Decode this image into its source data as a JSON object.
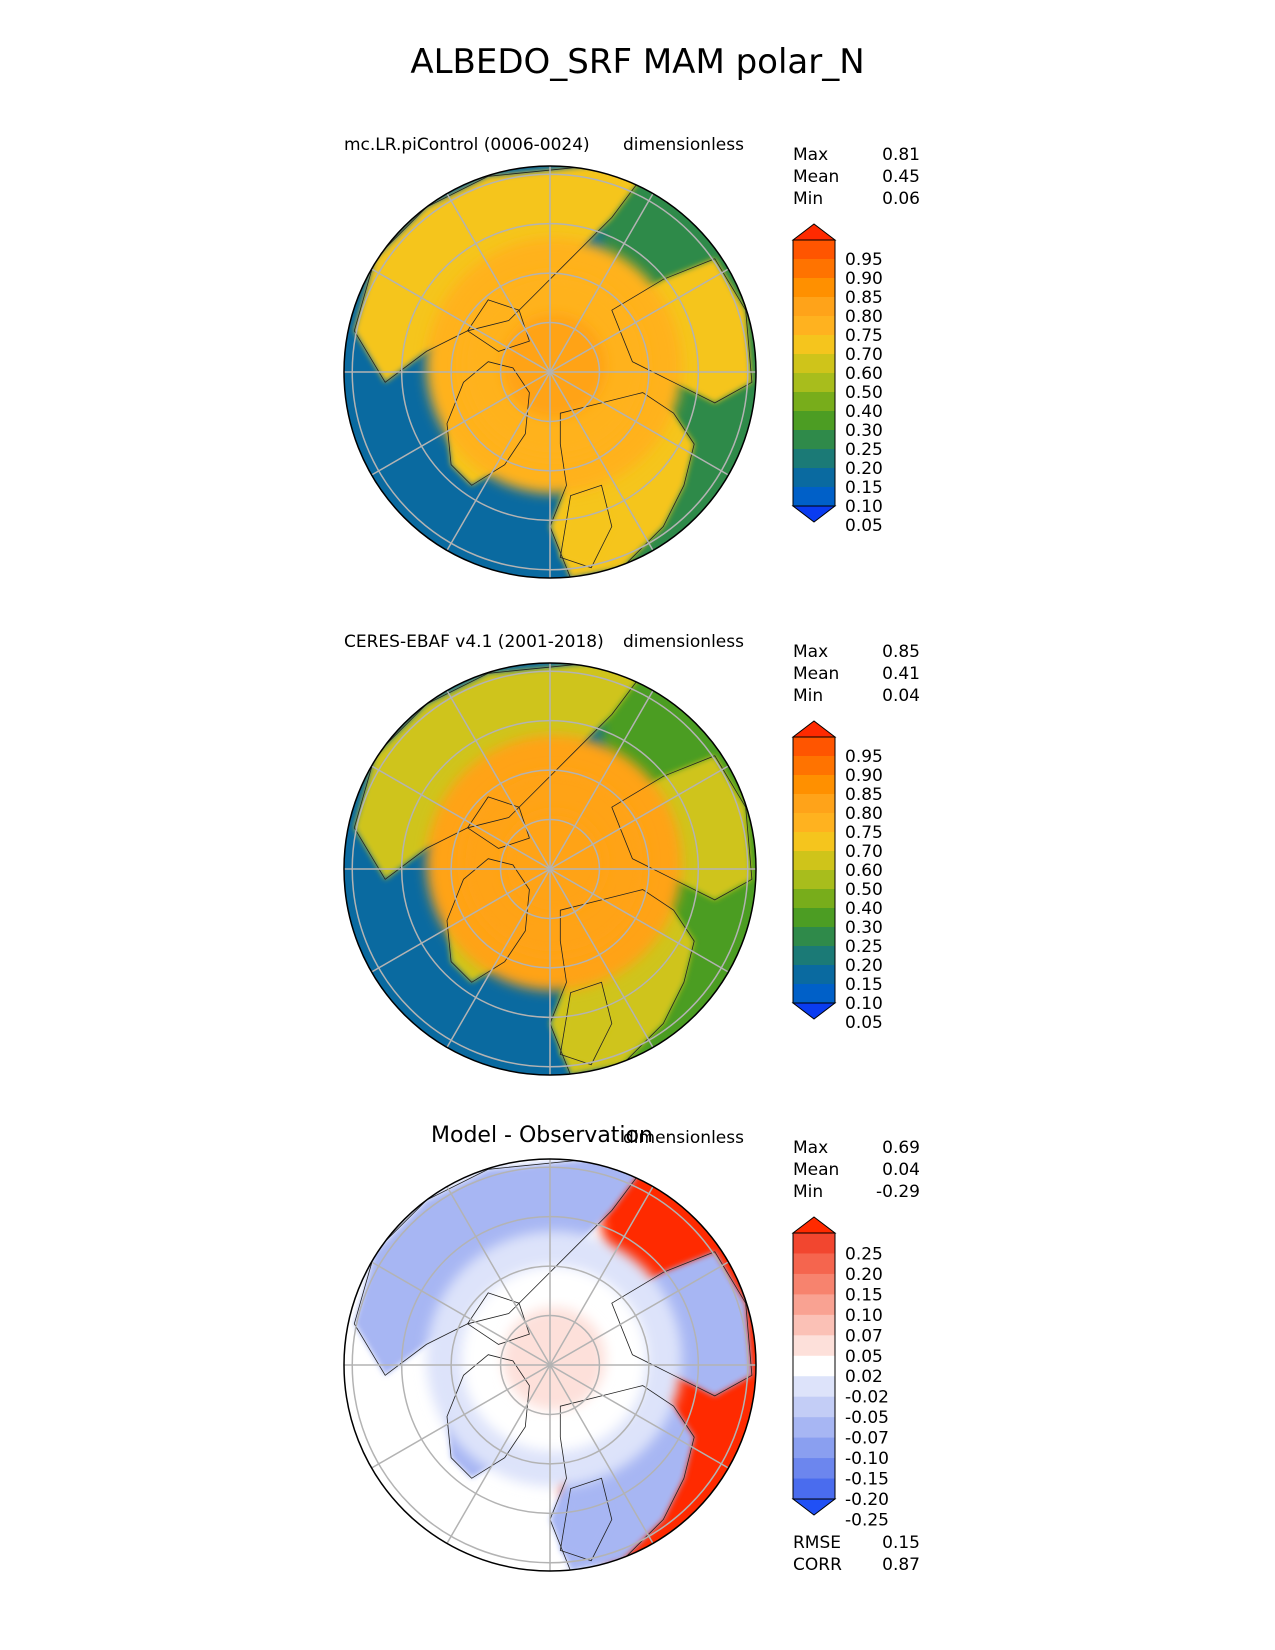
{
  "title": "ALBEDO_SRF MAM polar_N",
  "chart_data": [
    {
      "type": "heatmap",
      "projection": "north polar stereographic",
      "title_left": "mc.LR.piControl (0006-0024)",
      "title_right": "dimensionless",
      "stats": [
        {
          "label": "Max",
          "value": "0.81"
        },
        {
          "label": "Mean",
          "value": "0.45"
        },
        {
          "label": "Min",
          "value": "0.06"
        }
      ],
      "colorbar": {
        "levels": [
          "0.95",
          "0.90",
          "0.85",
          "0.80",
          "0.75",
          "0.70",
          "0.60",
          "0.50",
          "0.40",
          "0.30",
          "0.25",
          "0.20",
          "0.15",
          "0.10",
          "0.05"
        ],
        "colors": [
          "#ff2a00",
          "#ff5500",
          "#ff7300",
          "#ff9000",
          "#ffa319",
          "#ffb21f",
          "#f5c51d",
          "#cfc41a",
          "#a8bd1c",
          "#78ad1b",
          "#4c9d23",
          "#2f8a4a",
          "#1b7a76",
          "#0a6aa0",
          "#0060c8",
          "#0a3cf0"
        ],
        "extend": "both"
      },
      "field": {
        "pole_value": 0.75,
        "cap_boundary_value": 0.7,
        "land_value": 0.6,
        "ocean_value": 0.1,
        "subpolar_ocean_value": 0.2
      }
    },
    {
      "type": "heatmap",
      "projection": "north polar stereographic",
      "title_left": "CERES-EBAF v4.1 (2001-2018)",
      "title_right": "dimensionless",
      "stats": [
        {
          "label": "Max",
          "value": "0.85"
        },
        {
          "label": "Mean",
          "value": "0.41"
        },
        {
          "label": "Min",
          "value": "0.04"
        }
      ],
      "colorbar": {
        "levels": [
          "0.95",
          "0.90",
          "0.85",
          "0.80",
          "0.75",
          "0.70",
          "0.60",
          "0.50",
          "0.40",
          "0.30",
          "0.25",
          "0.20",
          "0.15",
          "0.10",
          "0.05"
        ],
        "colors": [
          "#ff2a00",
          "#ff5500",
          "#ff7300",
          "#ff9000",
          "#ffa319",
          "#ffb21f",
          "#f5c51d",
          "#cfc41a",
          "#a8bd1c",
          "#78ad1b",
          "#4c9d23",
          "#2f8a4a",
          "#1b7a76",
          "#0a6aa0",
          "#0060c8",
          "#0a3cf0"
        ],
        "extend": "both"
      },
      "field": {
        "pole_value": 0.75,
        "cap_boundary_value": 0.75,
        "land_value": 0.5,
        "ocean_value": 0.1,
        "subpolar_ocean_value": 0.25
      }
    },
    {
      "type": "heatmap",
      "projection": "north polar stereographic",
      "title_left": "Model - Observation",
      "title_right": "dimensionless",
      "stats": [
        {
          "label": "Max",
          "value": "0.69"
        },
        {
          "label": "Mean",
          "value": "0.04"
        },
        {
          "label": "Min",
          "value": "-0.29"
        }
      ],
      "stats_bottom": [
        {
          "label": "RMSE",
          "value": "0.15"
        },
        {
          "label": "CORR",
          "value": "0.87"
        }
      ],
      "colorbar": {
        "levels": [
          "0.25",
          "0.20",
          "0.15",
          "0.10",
          "0.07",
          "0.05",
          "0.02",
          "-0.02",
          "-0.05",
          "-0.07",
          "-0.10",
          "-0.15",
          "-0.20",
          "-0.25"
        ],
        "colors": [
          "#ff2a00",
          "#f2462f",
          "#f5654e",
          "#f7836e",
          "#f9a292",
          "#fbc1b6",
          "#fde0da",
          "#ffffff",
          "#dde3fa",
          "#c3cdf6",
          "#a7b6f3",
          "#8a9ff0",
          "#6c86ee",
          "#4a6cee",
          "#2050f5"
        ],
        "extend": "both"
      },
      "field": {
        "pole_value": 0.02,
        "cap_boundary_value": -0.03,
        "land_value": -0.08,
        "ocean_value": 0.0,
        "subpolar_ocean_value": 0.3
      }
    }
  ]
}
